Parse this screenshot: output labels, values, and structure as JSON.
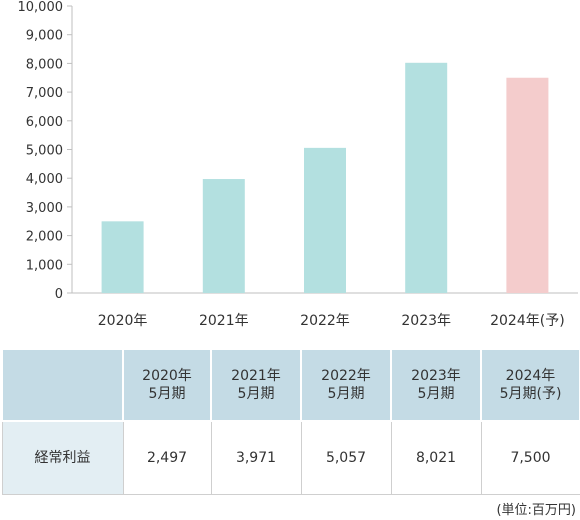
{
  "colors": {
    "actual": "#b3e0e0",
    "forecast": "#f4cccc",
    "axis": "#bfbfbf",
    "header_bg": "#c4dbe5",
    "rowhead_bg": "#e3eef3"
  },
  "chart_data": {
    "type": "bar",
    "categories": [
      "2020年",
      "2021年",
      "2022年",
      "2023年",
      "2024年(予)"
    ],
    "values": [
      2497,
      3971,
      5057,
      8021,
      7500
    ],
    "forecast_flags": [
      false,
      false,
      false,
      false,
      true
    ],
    "ylim": [
      0,
      10000
    ],
    "yticks": [
      0,
      1000,
      2000,
      3000,
      4000,
      5000,
      6000,
      7000,
      8000,
      9000,
      10000
    ],
    "ytick_labels": [
      "0",
      "1,000",
      "2,000",
      "3,000",
      "4,000",
      "5,000",
      "6,000",
      "7,000",
      "8,000",
      "9,000",
      "10,000"
    ],
    "title": "",
    "xlabel": "",
    "ylabel": "",
    "grid": false
  },
  "table": {
    "corner": "",
    "columns": [
      {
        "line1": "2020年",
        "line2": "5月期"
      },
      {
        "line1": "2021年",
        "line2": "5月期"
      },
      {
        "line1": "2022年",
        "line2": "5月期"
      },
      {
        "line1": "2023年",
        "line2": "5月期"
      },
      {
        "line1": "2024年",
        "line2": "5月期(予)"
      }
    ],
    "row_label": "経常利益",
    "row_values": [
      "2,497",
      "3,971",
      "5,057",
      "8,021",
      "7,500"
    ]
  },
  "unit_note": "(単位:百万円)"
}
